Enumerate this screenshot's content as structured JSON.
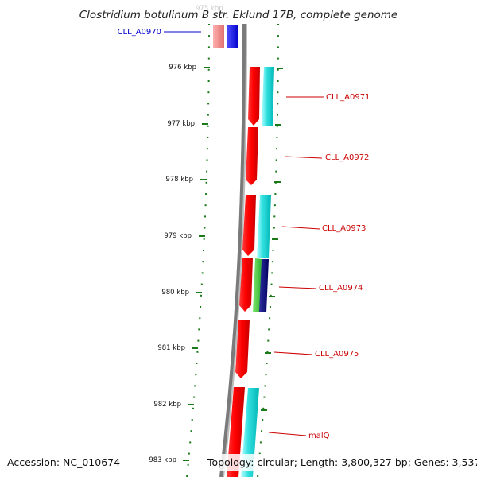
{
  "title": "Clostridium botulinum B str. Eklund 17B, complete genome",
  "footer": {
    "accession": "Accession: NC_010674",
    "topology": "Topology: circular; Length: 3,800,327 bp; Genes: 3,537"
  },
  "colors": {
    "backbone": "#808080",
    "tick": "#1a7a1a",
    "forward_gene": "#ff0000",
    "reverse_gene": "#00cccc",
    "label_red": "#cc0000",
    "label_blue": "#0000cc",
    "highlight_blue": "#0000ee"
  },
  "ticks": [
    "976 kbp",
    "977 kbp",
    "978 kbp",
    "979 kbp",
    "980 kbp",
    "981 kbp",
    "982 kbp",
    "983 kbp"
  ],
  "genes": [
    {
      "name": "CLL_A0970",
      "color": "label_blue"
    },
    {
      "name": "CLL_A0971",
      "color": "label_red"
    },
    {
      "name": "CLL_A0972",
      "color": "label_red"
    },
    {
      "name": "CLL_A0973",
      "color": "label_red"
    },
    {
      "name": "CLL_A0974",
      "color": "label_red"
    },
    {
      "name": "CLL_A0975",
      "color": "label_red"
    },
    {
      "name": "malQ",
      "color": "label_red"
    }
  ]
}
